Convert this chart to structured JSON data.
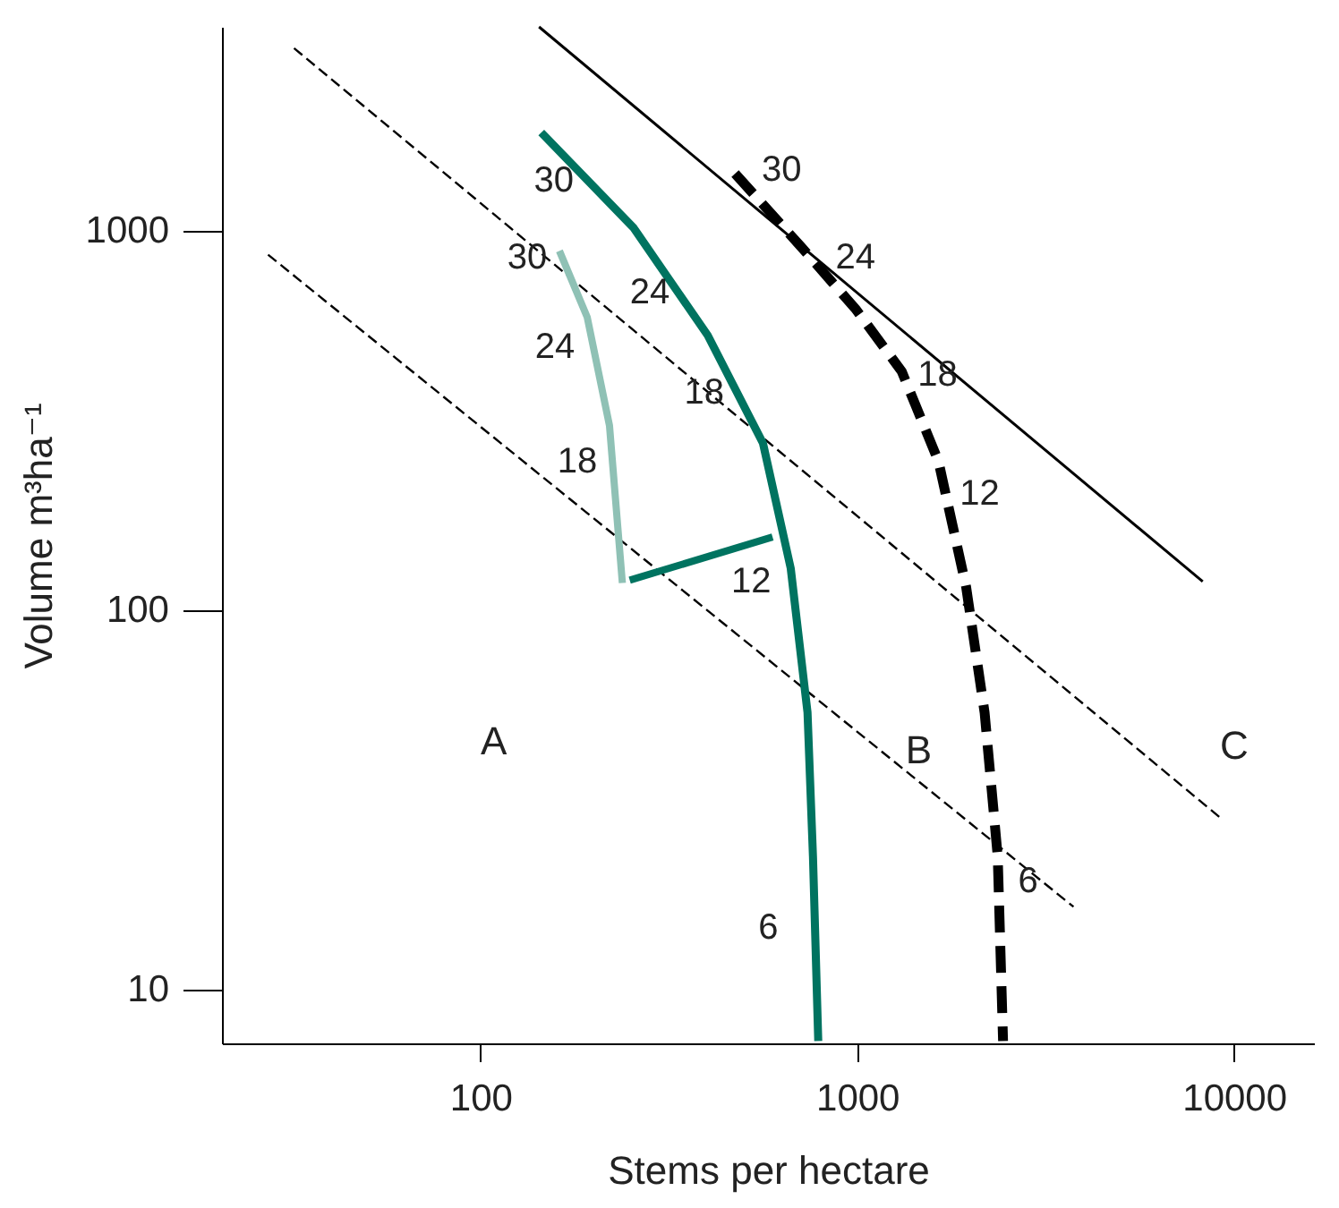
{
  "chart_data": {
    "type": "line",
    "xlabel": "Stems per hectare",
    "ylabel": "Volume m³ha⁻¹",
    "log": "xy",
    "xlim": [
      20.6,
      16300
    ],
    "ylim": [
      7.2,
      3460
    ],
    "xticks": [
      100,
      1000,
      10000
    ],
    "yticks": [
      10,
      100,
      1000
    ],
    "grid": false,
    "marker": "none",
    "series": [
      {
        "color": "#000000",
        "line_style": "solid",
        "x": [
          143,
          8260
        ],
        "values": [
          3460,
          119
        ]
      },
      {
        "color": "#000000",
        "line_style": "dashed",
        "x": [
          32,
          9140
        ],
        "values": [
          3040,
          28.5
        ]
      },
      {
        "color": "#000000",
        "line_style": "dashed",
        "x": [
          27.3,
          3750
        ],
        "values": [
          867,
          16.5
        ]
      },
      {
        "color": "#007360",
        "line_style": "solid",
        "x": [
          145,
          255,
          401,
          562,
          666,
          738,
          763,
          788
        ],
        "values": [
          1820,
          1020,
          531,
          276,
          129,
          53.7,
          22.4,
          7.3
        ]
      },
      {
        "color": "#8fc1b5",
        "line_style": "solid",
        "x": [
          162,
          192,
          220,
          238
        ],
        "values": [
          887,
          593,
          307,
          118
        ]
      },
      {
        "color": "#007360",
        "line_style": "solid",
        "x": [
          596,
          249
        ],
        "values": [
          156,
          120
        ]
      },
      {
        "color": "#000000",
        "line_style": "dashed",
        "x": [
          474,
          705,
          988,
          1312,
          1643,
          1946,
          2178,
          2360,
          2438
        ],
        "values": [
          1419,
          916,
          625,
          427,
          247,
          115,
          53.7,
          22.4,
          7.3
        ]
      }
    ],
    "annotations": [
      {
        "text": "30",
        "x": 145,
        "y": 1820
      },
      {
        "text": "30",
        "x": 162,
        "y": 887
      },
      {
        "text": "24",
        "x": 255,
        "y": 1020
      },
      {
        "text": "24",
        "x": 192,
        "y": 593
      },
      {
        "text": "18",
        "x": 401,
        "y": 531
      },
      {
        "text": "18",
        "x": 220,
        "y": 307
      },
      {
        "text": "12",
        "x": 596,
        "y": 156
      },
      {
        "text": "6",
        "x": 763,
        "y": 22.4
      },
      {
        "text": "30",
        "x": 474,
        "y": 1419
      },
      {
        "text": "24",
        "x": 705,
        "y": 916
      },
      {
        "text": "18",
        "x": 1312,
        "y": 427
      },
      {
        "text": "12",
        "x": 1643,
        "y": 247
      },
      {
        "text": "6",
        "x": 2360,
        "y": 22.4
      },
      "A",
      "B",
      "C"
    ]
  }
}
